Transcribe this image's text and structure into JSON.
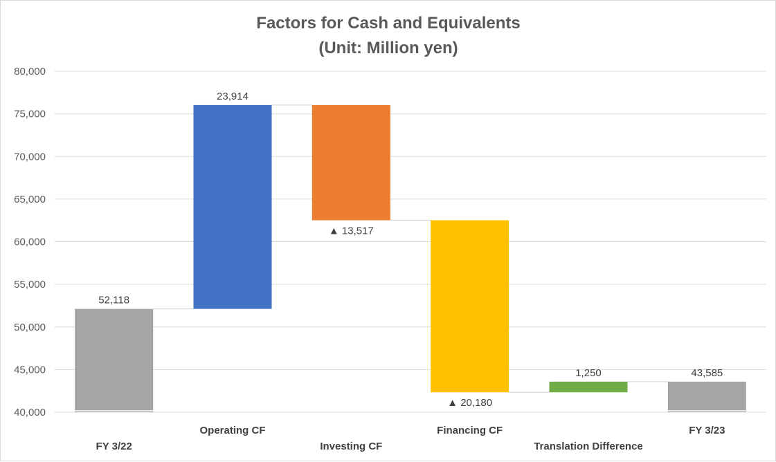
{
  "chart_data": {
    "type": "bar",
    "subtype": "waterfall",
    "title_lines": [
      "Factors for Cash and Equivalents",
      "(Unit: Million yen)"
    ],
    "xlabel": "",
    "ylabel": "",
    "ylim": [
      40000,
      80000
    ],
    "y_ticks": [
      40000,
      45000,
      50000,
      55000,
      60000,
      65000,
      70000,
      75000,
      80000
    ],
    "y_tick_labels": [
      "40,000",
      "45,000",
      "50,000",
      "55,000",
      "60,000",
      "65,000",
      "70,000",
      "75,000",
      "80,000"
    ],
    "grid": true,
    "legend": "none",
    "categories": [
      "FY 3/22",
      "Operating CF",
      "Investing CF",
      "Financing CF",
      "Translation Difference",
      "FY 3/23"
    ],
    "values": [
      52118,
      23914,
      -13517,
      -20180,
      1250,
      43585
    ],
    "bar_kind": [
      "total",
      "delta",
      "delta",
      "delta",
      "delta",
      "total"
    ],
    "data_labels": [
      "52,118",
      "23,914",
      "▲ 13,517",
      "▲ 20,180",
      "1,250",
      "43,585"
    ],
    "colors": [
      "#a5a5a5",
      "#4472c4",
      "#ed7d31",
      "#ffc000",
      "#70ad47",
      "#a5a5a5"
    ]
  }
}
